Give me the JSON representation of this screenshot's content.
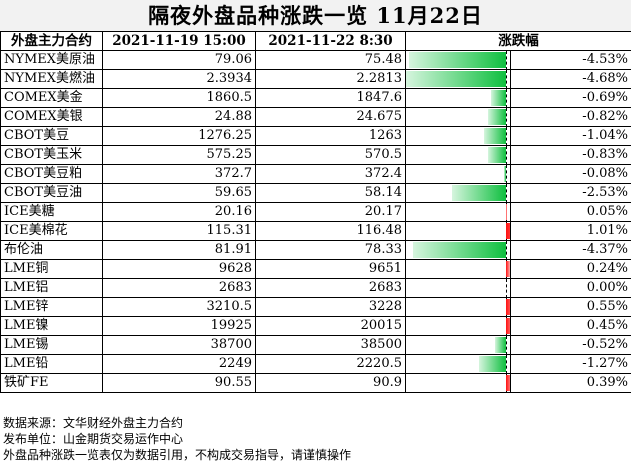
{
  "title": "隔夜外盘品种涨跌一览  11月22日",
  "columns": [
    "外盘主力合约",
    "2021-11-19 15:00",
    "2021-11-22 8:30",
    "涨跌幅",
    ""
  ],
  "colors": {
    "negative": "#0fbf3f",
    "positive": "#ff1010",
    "title_bg": "#f2f2f2"
  },
  "chart_data": {
    "type": "table",
    "bar_range_percent": [
      -4.68,
      1.01
    ],
    "rows": [
      {
        "name": "NYMEX美原油",
        "prev": "79.06",
        "curr": "75.48",
        "change_pct": -4.53,
        "change_label": "-4.53%"
      },
      {
        "name": "NYMEX美燃油",
        "prev": "2.3934",
        "curr": "2.2813",
        "change_pct": -4.68,
        "change_label": "-4.68%"
      },
      {
        "name": "COMEX美金",
        "prev": "1860.5",
        "curr": "1847.6",
        "change_pct": -0.69,
        "change_label": "-0.69%"
      },
      {
        "name": "COMEX美银",
        "prev": "24.88",
        "curr": "24.675",
        "change_pct": -0.82,
        "change_label": "-0.82%"
      },
      {
        "name": "CBOT美豆",
        "prev": "1276.25",
        "curr": "1263",
        "change_pct": -1.04,
        "change_label": "-1.04%"
      },
      {
        "name": "CBOT美玉米",
        "prev": "575.25",
        "curr": "570.5",
        "change_pct": -0.83,
        "change_label": "-0.83%"
      },
      {
        "name": "CBOT美豆粕",
        "prev": "372.7",
        "curr": "372.4",
        "change_pct": -0.08,
        "change_label": "-0.08%"
      },
      {
        "name": "CBOT美豆油",
        "prev": "59.65",
        "curr": "58.14",
        "change_pct": -2.53,
        "change_label": "-2.53%"
      },
      {
        "name": "ICE美糖",
        "prev": "20.16",
        "curr": "20.17",
        "change_pct": 0.05,
        "change_label": "0.05%"
      },
      {
        "name": "ICE美棉花",
        "prev": "115.31",
        "curr": "116.48",
        "change_pct": 1.01,
        "change_label": "1.01%"
      },
      {
        "name": "布伦油",
        "prev": "81.91",
        "curr": "78.33",
        "change_pct": -4.37,
        "change_label": "-4.37%"
      },
      {
        "name": "LME铜",
        "prev": "9628",
        "curr": "9651",
        "change_pct": 0.24,
        "change_label": "0.24%"
      },
      {
        "name": "LME铝",
        "prev": "2683",
        "curr": "2683",
        "change_pct": 0.0,
        "change_label": "0.00%"
      },
      {
        "name": "LME锌",
        "prev": "3210.5",
        "curr": "3228",
        "change_pct": 0.55,
        "change_label": "0.55%"
      },
      {
        "name": "LME镍",
        "prev": "19925",
        "curr": "20015",
        "change_pct": 0.45,
        "change_label": "0.45%"
      },
      {
        "name": "LME锡",
        "prev": "38700",
        "curr": "38500",
        "change_pct": -0.52,
        "change_label": "-0.52%"
      },
      {
        "name": "LME铅",
        "prev": "2249",
        "curr": "2220.5",
        "change_pct": -1.27,
        "change_label": "-1.27%"
      },
      {
        "name": "铁矿FE",
        "prev": "90.55",
        "curr": "90.9",
        "change_pct": 0.39,
        "change_label": "0.39%"
      }
    ]
  },
  "notes": [
    "数据来源：文华财经外盘主力合约",
    "发布单位：山金期货交易运作中心",
    "外盘品种涨跌一览表仅为数据引用，不构成交易指导，请谨慎操作"
  ]
}
